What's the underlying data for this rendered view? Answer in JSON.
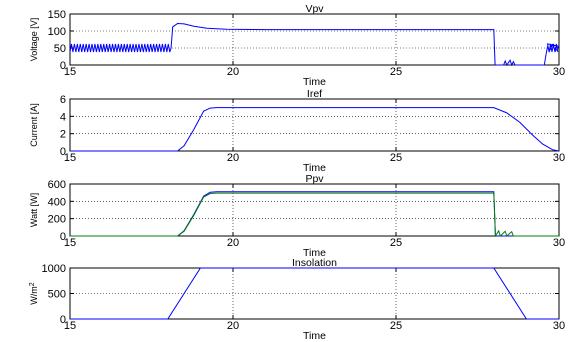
{
  "chart_data": [
    {
      "type": "line",
      "title": "Vpv",
      "xlabel": "Time",
      "ylabel": "Voltage [V]",
      "xlim": [
        15,
        30
      ],
      "ylim": [
        0,
        150
      ],
      "xticks": [
        15,
        20,
        25,
        30
      ],
      "yticks": [
        0,
        50,
        100,
        150
      ],
      "xtick_labels": [
        "15",
        "20",
        "25",
        "30"
      ],
      "ytick_labels": [
        "0",
        "50",
        "100",
        "150"
      ],
      "grid": true,
      "series": [
        {
          "color": "#0000ff",
          "oscillation": {
            "x_start": 15,
            "x_end": 18.1,
            "low": 38,
            "high": 62,
            "period": 0.09
          },
          "points": [
            [
              18.1,
              50
            ],
            [
              18.15,
              112
            ],
            [
              18.3,
              122
            ],
            [
              18.5,
              121
            ],
            [
              18.8,
              114
            ],
            [
              19.2,
              108
            ],
            [
              19.8,
              105
            ],
            [
              21,
              104
            ],
            [
              28,
              104
            ],
            [
              28.04,
              0
            ],
            [
              28.3,
              0
            ],
            [
              28.35,
              12
            ],
            [
              28.4,
              0
            ],
            [
              28.5,
              14
            ],
            [
              28.55,
              0
            ],
            [
              28.6,
              10
            ],
            [
              28.65,
              0
            ],
            [
              29.55,
              0
            ],
            [
              29.6,
              30
            ],
            [
              29.65,
              55
            ],
            [
              29.7,
              40
            ],
            [
              29.8,
              60
            ],
            [
              29.9,
              42
            ],
            [
              30,
              55
            ]
          ],
          "oscillation2": {
            "x_start": 29.65,
            "x_end": 30,
            "low": 38,
            "high": 62,
            "period": 0.09
          }
        }
      ]
    },
    {
      "type": "line",
      "title": "Iref",
      "xlabel": "Time",
      "ylabel": "Current [A]",
      "xlim": [
        15,
        30
      ],
      "ylim": [
        0,
        6
      ],
      "xticks": [
        15,
        20,
        25,
        30
      ],
      "yticks": [
        0,
        2,
        4,
        6
      ],
      "xtick_labels": [
        "15",
        "20",
        "25",
        "30"
      ],
      "ytick_labels": [
        "0",
        "2",
        "4",
        "6"
      ],
      "grid": true,
      "series": [
        {
          "color": "#0000ff",
          "points": [
            [
              15,
              0
            ],
            [
              18.3,
              0
            ],
            [
              18.5,
              0.6
            ],
            [
              18.8,
              2.5
            ],
            [
              19.1,
              4.6
            ],
            [
              19.3,
              4.95
            ],
            [
              19.5,
              5
            ],
            [
              28,
              5
            ],
            [
              28.4,
              4.4
            ],
            [
              28.8,
              3.3
            ],
            [
              29.2,
              1.8
            ],
            [
              29.5,
              0.8
            ],
            [
              29.8,
              0.15
            ],
            [
              30,
              0
            ]
          ]
        }
      ]
    },
    {
      "type": "line",
      "title": "Ppv",
      "xlabel": "Time",
      "ylabel": "Watt [W]",
      "xlim": [
        15,
        30
      ],
      "ylim": [
        0,
        600
      ],
      "xticks": [
        15,
        20,
        25,
        30
      ],
      "yticks": [
        0,
        200,
        400,
        600
      ],
      "xtick_labels": [
        "15",
        "20",
        "25",
        "30"
      ],
      "ytick_labels": [
        "0",
        "200",
        "400",
        "600"
      ],
      "grid": true,
      "series": [
        {
          "color": "#0000ff",
          "points": [
            [
              15,
              0
            ],
            [
              18.3,
              0
            ],
            [
              18.5,
              60
            ],
            [
              18.8,
              250
            ],
            [
              19.1,
              460
            ],
            [
              19.3,
              505
            ],
            [
              19.5,
              510
            ],
            [
              28,
              510
            ],
            [
              28.05,
              0
            ],
            [
              30,
              0
            ]
          ]
        },
        {
          "color": "#008000",
          "points": [
            [
              15,
              0
            ],
            [
              18.3,
              0
            ],
            [
              18.5,
              55
            ],
            [
              18.8,
              240
            ],
            [
              19.1,
              450
            ],
            [
              19.3,
              490
            ],
            [
              19.5,
              495
            ],
            [
              28,
              495
            ],
            [
              28.05,
              0
            ],
            [
              28.15,
              60
            ],
            [
              28.2,
              0
            ],
            [
              28.35,
              55
            ],
            [
              28.4,
              0
            ],
            [
              28.55,
              50
            ],
            [
              28.6,
              0
            ],
            [
              30,
              0
            ]
          ]
        }
      ]
    },
    {
      "type": "line",
      "title": "Insolation",
      "xlabel": "Time",
      "ylabel": "W/m2",
      "ylabel_main": "W/m",
      "ylabel_sup": "2",
      "xlim": [
        15,
        30
      ],
      "ylim": [
        0,
        1000
      ],
      "xticks": [
        15,
        20,
        25,
        30
      ],
      "yticks": [
        0,
        500,
        1000
      ],
      "xtick_labels": [
        "15",
        "20",
        "25",
        "30"
      ],
      "ytick_labels": [
        "0",
        "500",
        "1000"
      ],
      "grid": true,
      "series": [
        {
          "color": "#0000ff",
          "points": [
            [
              15,
              0
            ],
            [
              18,
              0
            ],
            [
              19,
              1000
            ],
            [
              28,
              1000
            ],
            [
              29,
              0
            ],
            [
              30,
              0
            ]
          ]
        }
      ]
    }
  ]
}
